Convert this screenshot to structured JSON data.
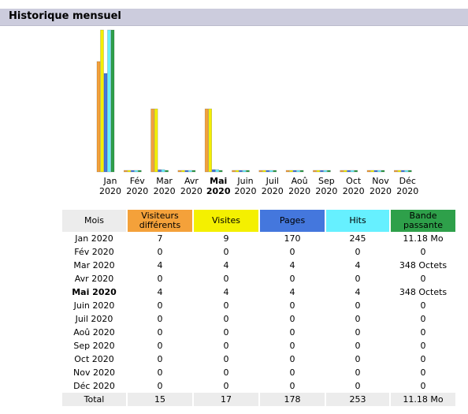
{
  "section": {
    "title": "Historique mensuel"
  },
  "colors": {
    "visiteurs": "#f4a13a",
    "visites": "#f4f000",
    "pages": "#4477dd",
    "hits": "#66f0ff",
    "bande": "#2ea04a",
    "header": "#ccccdd"
  },
  "chart_data": {
    "type": "bar",
    "categories": [
      "Jan 2020",
      "Fév 2020",
      "Mar 2020",
      "Avr 2020",
      "Mai 2020",
      "Juin 2020",
      "Juil 2020",
      "Aoû 2020",
      "Sep 2020",
      "Oct 2020",
      "Nov 2020",
      "Déc 2020"
    ],
    "axis_labels": [
      {
        "month": "Jan",
        "year": "2020",
        "bold": false
      },
      {
        "month": "Fév",
        "year": "2020",
        "bold": false
      },
      {
        "month": "Mar",
        "year": "2020",
        "bold": false
      },
      {
        "month": "Avr",
        "year": "2020",
        "bold": false
      },
      {
        "month": "Mai",
        "year": "2020",
        "bold": true
      },
      {
        "month": "Juin",
        "year": "2020",
        "bold": false
      },
      {
        "month": "Juil",
        "year": "2020",
        "bold": false
      },
      {
        "month": "Aoû",
        "year": "2020",
        "bold": false
      },
      {
        "month": "Sep",
        "year": "2020",
        "bold": false
      },
      {
        "month": "Oct",
        "year": "2020",
        "bold": false
      },
      {
        "month": "Nov",
        "year": "2020",
        "bold": false
      },
      {
        "month": "Déc",
        "year": "2020",
        "bold": false
      }
    ],
    "series": [
      {
        "name": "Visiteurs différents",
        "values": [
          7,
          0,
          4,
          0,
          4,
          0,
          0,
          0,
          0,
          0,
          0,
          0
        ]
      },
      {
        "name": "Visites",
        "values": [
          9,
          0,
          4,
          0,
          4,
          0,
          0,
          0,
          0,
          0,
          0,
          0
        ]
      },
      {
        "name": "Pages",
        "values": [
          170,
          0,
          4,
          0,
          4,
          0,
          0,
          0,
          0,
          0,
          0,
          0
        ]
      },
      {
        "name": "Hits",
        "values": [
          245,
          0,
          4,
          0,
          4,
          0,
          0,
          0,
          0,
          0,
          0,
          0
        ]
      },
      {
        "name": "Bande passante",
        "values": [
          11.18,
          0,
          0.00034,
          0,
          0.00034,
          0,
          0,
          0,
          0,
          0,
          0,
          0
        ]
      }
    ]
  },
  "table": {
    "headers": {
      "mois": "Mois",
      "visiteurs": [
        "Visiteurs",
        "différents"
      ],
      "visites": "Visites",
      "pages": "Pages",
      "hits": "Hits",
      "bande": [
        "Bande",
        "passante"
      ]
    },
    "rows": [
      {
        "month": "Jan 2020",
        "visiteurs": "7",
        "visites": "9",
        "pages": "170",
        "hits": "245",
        "bande": "11.18 Mo",
        "current": false
      },
      {
        "month": "Fév 2020",
        "visiteurs": "0",
        "visites": "0",
        "pages": "0",
        "hits": "0",
        "bande": "0",
        "current": false
      },
      {
        "month": "Mar 2020",
        "visiteurs": "4",
        "visites": "4",
        "pages": "4",
        "hits": "4",
        "bande": "348 Octets",
        "current": false
      },
      {
        "month": "Avr 2020",
        "visiteurs": "0",
        "visites": "0",
        "pages": "0",
        "hits": "0",
        "bande": "0",
        "current": false
      },
      {
        "month": "Mai 2020",
        "visiteurs": "4",
        "visites": "4",
        "pages": "4",
        "hits": "4",
        "bande": "348 Octets",
        "current": true
      },
      {
        "month": "Juin 2020",
        "visiteurs": "0",
        "visites": "0",
        "pages": "0",
        "hits": "0",
        "bande": "0",
        "current": false
      },
      {
        "month": "Juil 2020",
        "visiteurs": "0",
        "visites": "0",
        "pages": "0",
        "hits": "0",
        "bande": "0",
        "current": false
      },
      {
        "month": "Aoû 2020",
        "visiteurs": "0",
        "visites": "0",
        "pages": "0",
        "hits": "0",
        "bande": "0",
        "current": false
      },
      {
        "month": "Sep 2020",
        "visiteurs": "0",
        "visites": "0",
        "pages": "0",
        "hits": "0",
        "bande": "0",
        "current": false
      },
      {
        "month": "Oct 2020",
        "visiteurs": "0",
        "visites": "0",
        "pages": "0",
        "hits": "0",
        "bande": "0",
        "current": false
      },
      {
        "month": "Nov 2020",
        "visiteurs": "0",
        "visites": "0",
        "pages": "0",
        "hits": "0",
        "bande": "0",
        "current": false
      },
      {
        "month": "Déc 2020",
        "visiteurs": "0",
        "visites": "0",
        "pages": "0",
        "hits": "0",
        "bande": "0",
        "current": false
      }
    ],
    "total": {
      "label": "Total",
      "visiteurs": "15",
      "visites": "17",
      "pages": "178",
      "hits": "253",
      "bande": "11.18 Mo"
    }
  }
}
